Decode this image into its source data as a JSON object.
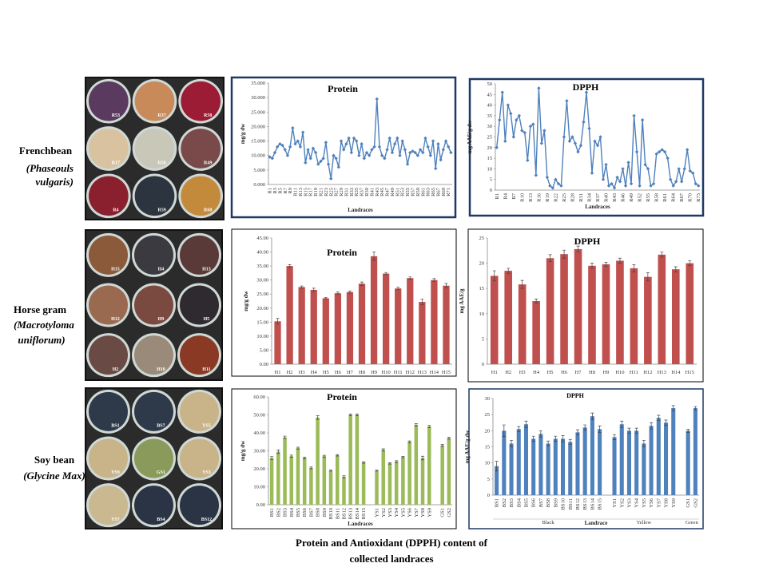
{
  "rows": [
    {
      "name": "Frenchbean",
      "latin": [
        "(Phaseouls",
        "vulgaris)"
      ]
    },
    {
      "name": "Horse gram",
      "latin": [
        "(Macrotyloma",
        "uniflorum)"
      ]
    },
    {
      "name": "Soy bean",
      "latin": [
        "(Glycine Max)"
      ]
    }
  ],
  "photos": [
    [
      "R53",
      "R37",
      "R50",
      "R17",
      "R58",
      "R49",
      "R4",
      "R59",
      "R68"
    ],
    [
      "H15",
      "H4",
      "H13",
      "H12",
      "H9",
      "H5",
      "H2",
      "H10",
      "H11"
    ],
    [
      "BS1",
      "BS7",
      "YS5",
      "YS9",
      "GS1",
      "YS3",
      "YS7",
      "BS4",
      "BS12"
    ]
  ],
  "caption": [
    "Protein and Antioxidant  (DPPH) content of",
    "collected landraces"
  ],
  "chart_data": [
    {
      "type": "line",
      "title": "Protein",
      "ylabel": "mg/g dw",
      "xlabel": "Landraces",
      "color": "#4f81bd",
      "categories": [
        "R1",
        null,
        "R3",
        null,
        "R5",
        null,
        "R7",
        null,
        "R9",
        null,
        "R11",
        null,
        "R13",
        null,
        "R15",
        null,
        "R17",
        null,
        "R19",
        null,
        "R21",
        null,
        "R23",
        null,
        "R25",
        null,
        "R27",
        null,
        "R29",
        null,
        "R31",
        null,
        "R33",
        null,
        "R35",
        null,
        "R37",
        null,
        "R39",
        null,
        "R41",
        null,
        "R43",
        null,
        "R45",
        null,
        "R47",
        null,
        "R49",
        null,
        "R51",
        null,
        "R53",
        null,
        "R55",
        null,
        "R57",
        null,
        "R59",
        null,
        "R61",
        null,
        "R63",
        null,
        "R65",
        null,
        "R67",
        null,
        "R69",
        null,
        "R71",
        null
      ],
      "values": [
        9.5,
        9,
        11,
        13,
        14,
        13.5,
        12,
        10,
        13,
        19.5,
        14,
        15,
        13,
        18,
        7.5,
        12,
        9,
        12.5,
        11,
        7,
        8,
        9,
        14.5,
        7,
        2,
        10,
        9,
        6,
        15,
        12,
        14,
        16,
        11,
        16,
        15,
        10,
        14,
        9,
        11,
        10,
        12,
        13,
        29.5,
        13,
        10,
        9,
        12,
        16,
        11,
        14,
        16,
        10,
        15,
        12,
        7,
        11,
        11.5,
        11,
        10,
        12,
        11,
        16,
        13,
        10,
        15,
        5.5,
        14,
        8.5,
        12,
        15,
        13,
        11
      ],
      "ylim": [
        0,
        35
      ],
      "yticks": [
        {
          "value": 0,
          "label": "0.000"
        },
        {
          "value": 5,
          "label": "5.000"
        },
        {
          "value": 10,
          "label": "10.000"
        },
        {
          "value": 15,
          "label": "15.000"
        },
        {
          "value": 20,
          "label": "20.000"
        },
        {
          "value": 25,
          "label": "25.000"
        },
        {
          "value": 30,
          "label": "30.000"
        },
        {
          "value": 35,
          "label": "35.000"
        }
      ],
      "grid": false
    },
    {
      "type": "line",
      "title": "DPPH",
      "ylabel": "mg AAE/g dw",
      "xlabel": "Landraces",
      "color": "#4f81bd",
      "categories": [
        "R1",
        null,
        null,
        "R4",
        null,
        null,
        "R7",
        null,
        null,
        "R10",
        null,
        null,
        "R13",
        null,
        null,
        "R16",
        null,
        null,
        "R19",
        null,
        null,
        "R22",
        null,
        null,
        "R25",
        null,
        null,
        "R28",
        null,
        null,
        "R31",
        null,
        null,
        "R34",
        null,
        null,
        "R37",
        null,
        null,
        "R40",
        null,
        null,
        "R43",
        null,
        null,
        "R46",
        null,
        null,
        "R49",
        null,
        null,
        "R52",
        null,
        null,
        "R55",
        null,
        null,
        "R58",
        null,
        null,
        "R61",
        null,
        null,
        "R64",
        null,
        null,
        "R67",
        null,
        null,
        "R70",
        null,
        null,
        "R73"
      ],
      "values": [
        20,
        33,
        46,
        23,
        40,
        36,
        25,
        33,
        35,
        28,
        27,
        14,
        30,
        31,
        7,
        48,
        22,
        28,
        6,
        2,
        1,
        5,
        3,
        2,
        25,
        42,
        23,
        25,
        22,
        18,
        21,
        32,
        46,
        29,
        8,
        23,
        21,
        25,
        5,
        12,
        2,
        3,
        1,
        6,
        4,
        10,
        2,
        13,
        3,
        35,
        18,
        2,
        33,
        12,
        10,
        2,
        3,
        17,
        18,
        19,
        18,
        15,
        5,
        2,
        4,
        10,
        4,
        10,
        19,
        9,
        8,
        3,
        2
      ],
      "ylim": [
        0,
        50
      ],
      "yticks": [
        0,
        5,
        10,
        15,
        20,
        25,
        30,
        35,
        40,
        45,
        50
      ],
      "grid": false
    },
    {
      "type": "bar",
      "title": "Protein",
      "ylabel": "mg/g dw",
      "color": "#c0504d",
      "categories": [
        "H1",
        "H2",
        "H3",
        "H4",
        "H5",
        "H6",
        "H7",
        "H8",
        "H9",
        "H10",
        "H11",
        "H12",
        "H13",
        "H14",
        "H15"
      ],
      "values": [
        15.3,
        35,
        27.5,
        26.5,
        23.5,
        25.3,
        25.7,
        28.7,
        38.5,
        32.3,
        27,
        30.7,
        22.2,
        30,
        28
      ],
      "errors": [
        1,
        0.5,
        0.4,
        0.6,
        0.3,
        0.4,
        0.4,
        0.6,
        1.5,
        0.4,
        0.5,
        0.4,
        1,
        0.5,
        0.8
      ],
      "ylim": [
        0,
        45
      ],
      "yticks": [
        {
          "value": 0,
          "label": "0.00"
        },
        {
          "value": 5,
          "label": "5.00"
        },
        {
          "value": 10,
          "label": "10.00"
        },
        {
          "value": 15,
          "label": "15.00"
        },
        {
          "value": 20,
          "label": "20.00"
        },
        {
          "value": 25,
          "label": "25.00"
        },
        {
          "value": 30,
          "label": "30.00"
        },
        {
          "value": 35,
          "label": "35.00"
        },
        {
          "value": 40,
          "label": "40.00"
        },
        {
          "value": 45,
          "label": "45.00"
        }
      ],
      "grid": false
    },
    {
      "type": "bar",
      "title": "DPPH",
      "ylabel": "mg AAE/g",
      "color": "#c0504d",
      "categories": [
        "H1",
        "H2",
        "H3",
        "H4",
        "H5",
        "H6",
        "H7",
        "H8",
        "H9",
        "H10",
        "H11",
        "H12",
        "H13",
        "H14",
        "H15"
      ],
      "values": [
        17.5,
        18.5,
        15.8,
        12.5,
        21,
        21.8,
        22.8,
        19.5,
        19.8,
        20.5,
        19,
        17.3,
        21.7,
        18.8,
        20
      ],
      "errors": [
        1,
        0.5,
        0.8,
        0.4,
        0.7,
        0.8,
        0.6,
        0.5,
        0.4,
        0.5,
        0.7,
        0.8,
        0.5,
        0.5,
        0.5
      ],
      "ylim": [
        0,
        25
      ],
      "yticks": [
        0,
        5,
        10,
        15,
        20,
        25
      ],
      "grid": false
    },
    {
      "type": "bar",
      "title": "Protein",
      "ylabel": "mg/g dw",
      "xlabel": "Landraces",
      "color": "#9bbb59",
      "categories": [
        "BS1",
        "BS2",
        "BS3",
        "BS4",
        "BS5",
        "BS6",
        "BS7",
        "BS8",
        "BS9",
        "BS10",
        "BS11",
        "BS12",
        "BS13",
        "BS14",
        "BS15",
        null,
        "YS1",
        "YS2",
        "YS3",
        "YS4",
        "YS5",
        "YS6",
        "YS7",
        "YS8",
        "YS9",
        null,
        "GS1",
        "GS2"
      ],
      "values": [
        26,
        29.5,
        37.5,
        27,
        31.5,
        26,
        20.5,
        48.5,
        27,
        19,
        27.5,
        15.5,
        50,
        50,
        23.5,
        null,
        19,
        30.5,
        23,
        24,
        26.5,
        35,
        44.5,
        26,
        43.5,
        null,
        33,
        37
      ],
      "errors": [
        0.8,
        1,
        0.7,
        0.6,
        0.5,
        0.5,
        0.5,
        1,
        0.5,
        0.3,
        0.4,
        0.6,
        0.5,
        0.5,
        0.4,
        null,
        0.3,
        0.6,
        0.4,
        0.5,
        0.4,
        0.5,
        0.6,
        1,
        0.6,
        null,
        0.5,
        0.5
      ],
      "ylim": [
        0,
        60
      ],
      "yticks": [
        {
          "value": 0,
          "label": "0.00"
        },
        {
          "value": 10,
          "label": "10.00"
        },
        {
          "value": 20,
          "label": "20.00"
        },
        {
          "value": 30,
          "label": "30.00"
        },
        {
          "value": 40,
          "label": "40.00"
        },
        {
          "value": 50,
          "label": "50.00"
        },
        {
          "value": 60,
          "label": "60.00"
        }
      ],
      "grid": false
    },
    {
      "type": "bar",
      "title": "DPPH",
      "ylabel": "mg AAE/g dw",
      "xlabel": "Landrace",
      "color": "#4f81bd",
      "categories": [
        "BS1",
        "BS2",
        "BS3",
        "BS4",
        "BS5",
        "BS6",
        "BS7",
        "BS8",
        "BS9",
        "BS10",
        "BS11",
        "BS12",
        "BS13",
        "BS14",
        "BS15",
        null,
        "YS1",
        "YS2",
        "YS3",
        "YS4",
        "YS5",
        "YS6",
        "YS7",
        "YS8",
        "YS9",
        null,
        "GS1",
        "GS2"
      ],
      "values": [
        9,
        20,
        16,
        20.5,
        22,
        17.5,
        19,
        16,
        17.5,
        17.5,
        16.5,
        19.5,
        21,
        24.5,
        20.5,
        null,
        18,
        22,
        20,
        20,
        16,
        21.5,
        24,
        22.5,
        27,
        null,
        20,
        27
      ],
      "errors": [
        1.5,
        1.8,
        1,
        0.8,
        1,
        0.8,
        1,
        0.8,
        0.8,
        1,
        0.8,
        0.8,
        0.8,
        1,
        1,
        null,
        0.8,
        1,
        0.8,
        0.8,
        1,
        1,
        0.8,
        0.8,
        0.8,
        null,
        0.5,
        0.5
      ],
      "groups": [
        "Black",
        "Yellow",
        "Green"
      ],
      "ylim": [
        0,
        30
      ],
      "yticks": [
        0,
        5,
        10,
        15,
        20,
        25,
        30
      ],
      "grid": false
    }
  ]
}
